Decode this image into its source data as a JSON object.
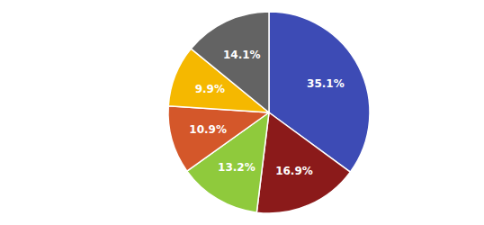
{
  "chart_data": {
    "type": "pie",
    "values": [
      35.1,
      16.9,
      13.2,
      10.9,
      9.9,
      14.1
    ],
    "value_labels": [
      "35.1%",
      "16.9%",
      "13.2%",
      "10.9%",
      "9.9%",
      "14.1%"
    ],
    "colors": [
      "#3d4bb5",
      "#8b1a1a",
      "#8fca3c",
      "#d4572a",
      "#f5b800",
      "#636363"
    ],
    "data_labels": true
  }
}
